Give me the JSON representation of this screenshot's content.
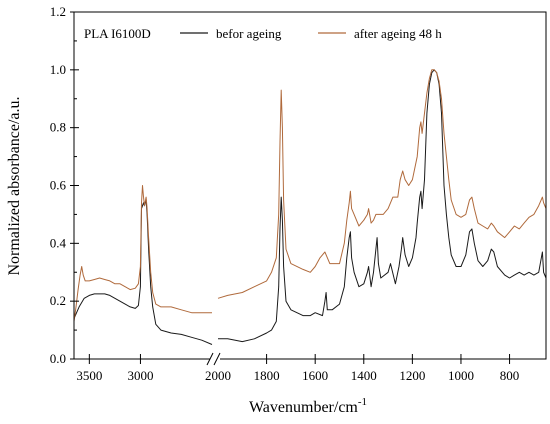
{
  "chart_data": {
    "type": "line",
    "sample_label": "PLA I6100D",
    "xlabel": "Wavenumber/cm",
    "xlabel_superscript": "-1",
    "ylabel": "Normalized absorbance/a.u.",
    "ylim": [
      0.0,
      1.2
    ],
    "y_ticks": [
      0.0,
      0.2,
      0.4,
      0.6,
      0.8,
      1.0,
      1.2
    ],
    "y_tick_labels": [
      "0.0",
      "0.2",
      "0.4",
      "0.6",
      "0.8",
      "1.0",
      "1.2"
    ],
    "x_reversed": true,
    "x_axis_break": [
      2300,
      2000
    ],
    "x_segments": [
      {
        "xlim": [
          3650,
          2300
        ],
        "ticks": [
          3500,
          3000
        ],
        "tick_labels": [
          "3500",
          "3000"
        ]
      },
      {
        "xlim": [
          2000,
          650
        ],
        "ticks": [
          2000,
          1800,
          1600,
          1400,
          1200,
          1000,
          800
        ],
        "tick_labels": [
          "2000",
          "1800",
          "1600",
          "1400",
          "1200",
          "1000",
          "800"
        ]
      }
    ],
    "legend_position": "top",
    "series": [
      {
        "name": "befor ageing",
        "color": "#1a1a1a",
        "segments": [
          [
            [
              3650,
              0.14
            ],
            [
              3600,
              0.18
            ],
            [
              3550,
              0.21
            ],
            [
              3500,
              0.22
            ],
            [
              3450,
              0.225
            ],
            [
              3400,
              0.225
            ],
            [
              3350,
              0.225
            ],
            [
              3300,
              0.22
            ],
            [
              3250,
              0.21
            ],
            [
              3200,
              0.2
            ],
            [
              3150,
              0.19
            ],
            [
              3100,
              0.18
            ],
            [
              3050,
              0.175
            ],
            [
              3020,
              0.185
            ],
            [
              3000,
              0.25
            ],
            [
              2995,
              0.4
            ],
            [
              2990,
              0.52
            ],
            [
              2970,
              0.54
            ],
            [
              2960,
              0.53
            ],
            [
              2945,
              0.55
            ],
            [
              2935,
              0.5
            ],
            [
              2920,
              0.38
            ],
            [
              2900,
              0.25
            ],
            [
              2880,
              0.18
            ],
            [
              2850,
              0.12
            ],
            [
              2800,
              0.1
            ],
            [
              2700,
              0.09
            ],
            [
              2600,
              0.085
            ],
            [
              2500,
              0.075
            ],
            [
              2400,
              0.065
            ],
            [
              2300,
              0.05
            ]
          ],
          [
            [
              2000,
              0.07
            ],
            [
              1960,
              0.07
            ],
            [
              1900,
              0.06
            ],
            [
              1850,
              0.07
            ],
            [
              1800,
              0.09
            ],
            [
              1780,
              0.1
            ],
            [
              1760,
              0.13
            ],
            [
              1750,
              0.25
            ],
            [
              1745,
              0.45
            ],
            [
              1740,
              0.56
            ],
            [
              1735,
              0.48
            ],
            [
              1730,
              0.32
            ],
            [
              1720,
              0.2
            ],
            [
              1700,
              0.17
            ],
            [
              1650,
              0.15
            ],
            [
              1620,
              0.15
            ],
            [
              1600,
              0.16
            ],
            [
              1570,
              0.15
            ],
            [
              1560,
              0.2
            ],
            [
              1555,
              0.23
            ],
            [
              1550,
              0.17
            ],
            [
              1530,
              0.17
            ],
            [
              1500,
              0.19
            ],
            [
              1480,
              0.25
            ],
            [
              1470,
              0.35
            ],
            [
              1460,
              0.42
            ],
            [
              1455,
              0.44
            ],
            [
              1450,
              0.35
            ],
            [
              1440,
              0.3
            ],
            [
              1420,
              0.25
            ],
            [
              1400,
              0.26
            ],
            [
              1385,
              0.3
            ],
            [
              1380,
              0.32
            ],
            [
              1370,
              0.25
            ],
            [
              1360,
              0.3
            ],
            [
              1350,
              0.38
            ],
            [
              1345,
              0.42
            ],
            [
              1340,
              0.33
            ],
            [
              1330,
              0.28
            ],
            [
              1300,
              0.3
            ],
            [
              1290,
              0.33
            ],
            [
              1270,
              0.26
            ],
            [
              1255,
              0.32
            ],
            [
              1245,
              0.38
            ],
            [
              1240,
              0.42
            ],
            [
              1230,
              0.36
            ],
            [
              1215,
              0.32
            ],
            [
              1200,
              0.35
            ],
            [
              1185,
              0.42
            ],
            [
              1180,
              0.47
            ],
            [
              1170,
              0.56
            ],
            [
              1165,
              0.58
            ],
            [
              1160,
              0.52
            ],
            [
              1150,
              0.62
            ],
            [
              1140,
              0.85
            ],
            [
              1130,
              0.95
            ],
            [
              1120,
              0.99
            ],
            [
              1110,
              1.0
            ],
            [
              1100,
              0.99
            ],
            [
              1090,
              0.95
            ],
            [
              1080,
              0.85
            ],
            [
              1070,
              0.6
            ],
            [
              1060,
              0.5
            ],
            [
              1050,
              0.42
            ],
            [
              1040,
              0.36
            ],
            [
              1020,
              0.32
            ],
            [
              1000,
              0.32
            ],
            [
              980,
              0.36
            ],
            [
              965,
              0.44
            ],
            [
              955,
              0.45
            ],
            [
              945,
              0.4
            ],
            [
              930,
              0.34
            ],
            [
              910,
              0.32
            ],
            [
              890,
              0.34
            ],
            [
              875,
              0.38
            ],
            [
              865,
              0.37
            ],
            [
              850,
              0.32
            ],
            [
              820,
              0.29
            ],
            [
              800,
              0.28
            ],
            [
              780,
              0.29
            ],
            [
              760,
              0.3
            ],
            [
              740,
              0.29
            ],
            [
              720,
              0.3
            ],
            [
              700,
              0.29
            ],
            [
              680,
              0.3
            ],
            [
              665,
              0.37
            ],
            [
              660,
              0.3
            ],
            [
              650,
              0.28
            ]
          ]
        ]
      },
      {
        "name": "after ageing 48 h",
        "color": "#b06a3c",
        "segments": [
          [
            [
              3650,
              0.13
            ],
            [
              3630,
              0.18
            ],
            [
              3610,
              0.24
            ],
            [
              3590,
              0.29
            ],
            [
              3575,
              0.32
            ],
            [
              3560,
              0.29
            ],
            [
              3540,
              0.27
            ],
            [
              3500,
              0.27
            ],
            [
              3450,
              0.275
            ],
            [
              3400,
              0.28
            ],
            [
              3350,
              0.275
            ],
            [
              3300,
              0.27
            ],
            [
              3250,
              0.26
            ],
            [
              3200,
              0.26
            ],
            [
              3150,
              0.25
            ],
            [
              3100,
              0.24
            ],
            [
              3050,
              0.245
            ],
            [
              3020,
              0.26
            ],
            [
              3000,
              0.32
            ],
            [
              2995,
              0.44
            ],
            [
              2990,
              0.54
            ],
            [
              2980,
              0.6
            ],
            [
              2970,
              0.56
            ],
            [
              2960,
              0.53
            ],
            [
              2945,
              0.56
            ],
            [
              2935,
              0.52
            ],
            [
              2920,
              0.42
            ],
            [
              2900,
              0.3
            ],
            [
              2880,
              0.23
            ],
            [
              2850,
              0.19
            ],
            [
              2800,
              0.18
            ],
            [
              2700,
              0.18
            ],
            [
              2600,
              0.17
            ],
            [
              2500,
              0.16
            ],
            [
              2400,
              0.16
            ],
            [
              2300,
              0.16
            ]
          ],
          [
            [
              2000,
              0.21
            ],
            [
              1960,
              0.22
            ],
            [
              1900,
              0.23
            ],
            [
              1850,
              0.25
            ],
            [
              1800,
              0.27
            ],
            [
              1780,
              0.3
            ],
            [
              1760,
              0.35
            ],
            [
              1750,
              0.5
            ],
            [
              1745,
              0.75
            ],
            [
              1740,
              0.93
            ],
            [
              1735,
              0.8
            ],
            [
              1730,
              0.55
            ],
            [
              1720,
              0.38
            ],
            [
              1700,
              0.33
            ],
            [
              1650,
              0.31
            ],
            [
              1620,
              0.3
            ],
            [
              1600,
              0.32
            ],
            [
              1580,
              0.35
            ],
            [
              1560,
              0.37
            ],
            [
              1540,
              0.33
            ],
            [
              1500,
              0.33
            ],
            [
              1480,
              0.4
            ],
            [
              1470,
              0.48
            ],
            [
              1460,
              0.54
            ],
            [
              1455,
              0.58
            ],
            [
              1450,
              0.52
            ],
            [
              1440,
              0.5
            ],
            [
              1420,
              0.46
            ],
            [
              1400,
              0.48
            ],
            [
              1385,
              0.5
            ],
            [
              1380,
              0.52
            ],
            [
              1370,
              0.47
            ],
            [
              1360,
              0.48
            ],
            [
              1350,
              0.5
            ],
            [
              1340,
              0.5
            ],
            [
              1320,
              0.5
            ],
            [
              1300,
              0.52
            ],
            [
              1280,
              0.56
            ],
            [
              1260,
              0.56
            ],
            [
              1250,
              0.62
            ],
            [
              1240,
              0.65
            ],
            [
              1230,
              0.62
            ],
            [
              1215,
              0.6
            ],
            [
              1200,
              0.62
            ],
            [
              1185,
              0.68
            ],
            [
              1180,
              0.7
            ],
            [
              1170,
              0.8
            ],
            [
              1165,
              0.82
            ],
            [
              1160,
              0.78
            ],
            [
              1150,
              0.85
            ],
            [
              1140,
              0.92
            ],
            [
              1130,
              0.97
            ],
            [
              1120,
              1.0
            ],
            [
              1110,
              1.0
            ],
            [
              1100,
              0.99
            ],
            [
              1090,
              0.96
            ],
            [
              1080,
              0.9
            ],
            [
              1070,
              0.78
            ],
            [
              1060,
              0.7
            ],
            [
              1050,
              0.62
            ],
            [
              1040,
              0.55
            ],
            [
              1020,
              0.5
            ],
            [
              1000,
              0.49
            ],
            [
              980,
              0.5
            ],
            [
              965,
              0.55
            ],
            [
              955,
              0.56
            ],
            [
              945,
              0.52
            ],
            [
              930,
              0.47
            ],
            [
              910,
              0.46
            ],
            [
              890,
              0.45
            ],
            [
              875,
              0.47
            ],
            [
              865,
              0.46
            ],
            [
              850,
              0.44
            ],
            [
              820,
              0.42
            ],
            [
              800,
              0.44
            ],
            [
              780,
              0.46
            ],
            [
              760,
              0.45
            ],
            [
              740,
              0.47
            ],
            [
              720,
              0.49
            ],
            [
              700,
              0.5
            ],
            [
              680,
              0.53
            ],
            [
              665,
              0.56
            ],
            [
              660,
              0.54
            ],
            [
              650,
              0.52
            ]
          ]
        ]
      }
    ]
  }
}
